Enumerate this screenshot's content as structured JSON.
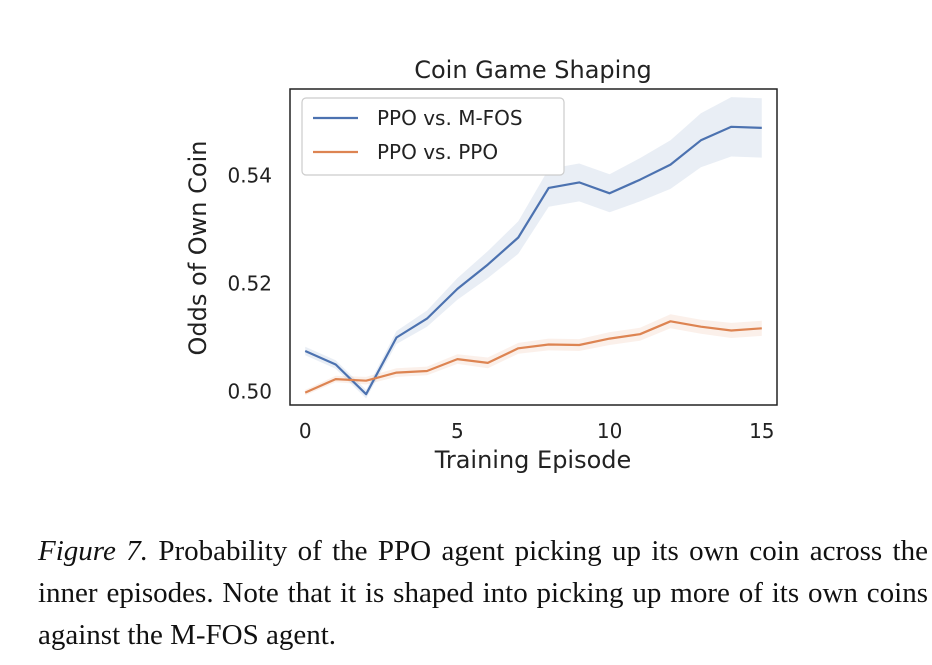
{
  "chart_data": {
    "type": "line",
    "title": "Coin Game Shaping",
    "xlabel": "Training Episode",
    "ylabel": "Odds of Own Coin",
    "x": [
      0,
      1,
      2,
      3,
      4,
      5,
      6,
      7,
      8,
      9,
      10,
      11,
      12,
      13,
      14,
      15
    ],
    "xlim": [
      -0.5,
      15.5
    ],
    "ylim": [
      0.4975,
      0.556
    ],
    "xticks": [
      0,
      5,
      10,
      15
    ],
    "xtick_labels": [
      "0",
      "5",
      "10",
      "15"
    ],
    "yticks": [
      0.5,
      0.52,
      0.54
    ],
    "ytick_labels": [
      "0.50",
      "0.52",
      "0.54"
    ],
    "grid": false,
    "legend_position": "top-left",
    "series": [
      {
        "name": "PPO vs. M-FOS",
        "color": "#4c72b0",
        "values": [
          0.5075,
          0.505,
          0.4995,
          0.51,
          0.5135,
          0.519,
          0.5235,
          0.5285,
          0.5377,
          0.5387,
          0.5367,
          0.5392,
          0.542,
          0.5465,
          0.549,
          0.5488
        ],
        "band_halfwidth": [
          0.0008,
          0.0008,
          0.0008,
          0.0012,
          0.0015,
          0.002,
          0.0025,
          0.003,
          0.0035,
          0.0035,
          0.0035,
          0.004,
          0.0045,
          0.005,
          0.0055,
          0.0055
        ]
      },
      {
        "name": "PPO vs. PPO",
        "color": "#dd8452",
        "values": [
          0.4998,
          0.5023,
          0.502,
          0.5035,
          0.5038,
          0.506,
          0.5053,
          0.508,
          0.5087,
          0.5086,
          0.5098,
          0.5106,
          0.513,
          0.512,
          0.5113,
          0.5117
        ],
        "band_halfwidth": [
          0.0005,
          0.0006,
          0.0007,
          0.0008,
          0.0008,
          0.0009,
          0.001,
          0.001,
          0.0011,
          0.0011,
          0.0012,
          0.0012,
          0.0013,
          0.0013,
          0.0014,
          0.0014
        ]
      }
    ]
  },
  "caption": {
    "lead": "Figure 7.",
    "text": " Probability of the PPO agent picking up its own coin across the inner episodes. Note that it is shaped into picking up more of its own coins against the M-FOS agent."
  }
}
